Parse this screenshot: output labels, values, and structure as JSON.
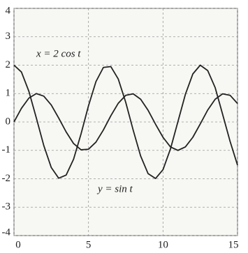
{
  "chart_data": {
    "type": "line",
    "x": [
      0,
      0.5,
      1,
      1.5,
      2,
      2.5,
      3,
      3.5,
      4,
      4.5,
      5,
      5.5,
      6,
      6.5,
      7,
      7.5,
      8,
      8.5,
      9,
      9.5,
      10,
      10.5,
      11,
      11.5,
      12,
      12.5,
      13,
      13.5,
      14,
      14.5,
      15
    ],
    "series": [
      {
        "name": "x = 2 cos t",
        "color": "#222222",
        "values": [
          2,
          1.76,
          1.08,
          0.14,
          -0.83,
          -1.6,
          -1.98,
          -1.87,
          -1.31,
          -0.42,
          0.57,
          1.42,
          1.92,
          1.95,
          1.51,
          0.69,
          -0.29,
          -1.2,
          -1.82,
          -1.99,
          -1.68,
          -0.95,
          0.01,
          0.97,
          1.69,
          2,
          1.81,
          1.21,
          0.27,
          -0.68,
          -1.52
        ]
      },
      {
        "name": "y = sin t",
        "color": "#222222",
        "values": [
          0,
          0.48,
          0.84,
          1,
          0.91,
          0.6,
          0.14,
          -0.35,
          -0.76,
          -0.98,
          -0.96,
          -0.71,
          -0.28,
          0.22,
          0.66,
          0.94,
          0.99,
          0.8,
          0.41,
          -0.08,
          -0.54,
          -0.88,
          -1,
          -0.88,
          -0.54,
          -0.07,
          0.42,
          0.8,
          0.99,
          0.94,
          0.65
        ]
      }
    ],
    "xlim": [
      0,
      15
    ],
    "xticks": [
      0,
      5,
      10,
      15
    ],
    "ylim": [
      -4,
      4
    ],
    "yticks": [
      -4,
      -3,
      -2,
      -1,
      0,
      1,
      2,
      3,
      4
    ],
    "grid": true
  }
}
